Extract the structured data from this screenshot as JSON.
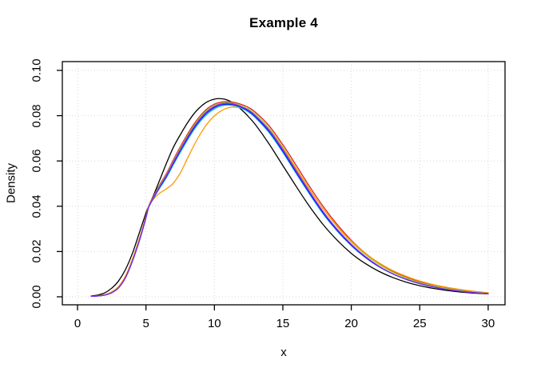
{
  "figure": {
    "background": "#FFFFFF"
  },
  "chart_data": {
    "type": "line",
    "title": "Example 4",
    "xlabel": "x",
    "ylabel": "Density",
    "xlim": [
      0,
      30
    ],
    "ylim": [
      0.0,
      0.1
    ],
    "grid": true,
    "grid_style": "dotted",
    "legend_position": "none",
    "colors": {
      "grid": "#D6D6D6",
      "axis": "#000000",
      "text": "#000000"
    },
    "xticks": {
      "values": [
        0,
        5,
        10,
        15,
        20,
        25,
        30
      ],
      "labels": [
        "0",
        "5",
        "10",
        "15",
        "20",
        "25",
        "30"
      ]
    },
    "yticks": {
      "values": [
        0.0,
        0.02,
        0.04,
        0.06,
        0.08,
        0.1
      ],
      "labels": [
        "0.00",
        "0.02",
        "0.04",
        "0.06",
        "0.08",
        "0.10"
      ]
    },
    "x": [
      1,
      1.5,
      2,
      2.5,
      3,
      3.5,
      4,
      4.5,
      5,
      5.2,
      5.6,
      6,
      6.5,
      7,
      7.5,
      8,
      8.5,
      9,
      9.5,
      10,
      10.5,
      11,
      11.5,
      12,
      12.5,
      13,
      14,
      15,
      16,
      17,
      18,
      19,
      20,
      21,
      22,
      23,
      24,
      25,
      26,
      27,
      28,
      29,
      30
    ],
    "series": [
      {
        "name": "black",
        "color": "#000000",
        "values": [
          0.0004,
          0.0008,
          0.0018,
          0.0038,
          0.007,
          0.012,
          0.019,
          0.028,
          0.037,
          0.04,
          0.0455,
          0.0515,
          0.059,
          0.066,
          0.0715,
          0.0765,
          0.0808,
          0.084,
          0.0862,
          0.0873,
          0.0875,
          0.0868,
          0.085,
          0.0825,
          0.0795,
          0.076,
          0.0675,
          0.058,
          0.0485,
          0.0395,
          0.0315,
          0.0248,
          0.0192,
          0.0148,
          0.0113,
          0.0086,
          0.0065,
          0.0049,
          0.0037,
          0.0028,
          0.0021,
          0.0016,
          0.0013
        ]
      },
      {
        "name": "red",
        "color": "#E82020",
        "values": [
          0.0002,
          0.0004,
          0.0008,
          0.0018,
          0.004,
          0.0085,
          0.016,
          0.025,
          0.0355,
          0.04,
          0.045,
          0.0495,
          0.0545,
          0.0605,
          0.0662,
          0.0715,
          0.0763,
          0.0802,
          0.0832,
          0.0851,
          0.086,
          0.0862,
          0.0858,
          0.0849,
          0.0836,
          0.0815,
          0.0755,
          0.0672,
          0.0578,
          0.0483,
          0.0395,
          0.0317,
          0.025,
          0.0194,
          0.015,
          0.0114,
          0.0087,
          0.0066,
          0.005,
          0.0038,
          0.0028,
          0.0021,
          0.0016
        ]
      },
      {
        "name": "green",
        "color": "#9ACD32",
        "values": [
          0.0002,
          0.0004,
          0.0008,
          0.0018,
          0.004,
          0.0085,
          0.0158,
          0.0248,
          0.0352,
          0.0398,
          0.0447,
          0.0491,
          0.054,
          0.0599,
          0.0655,
          0.0708,
          0.0756,
          0.0796,
          0.0826,
          0.0846,
          0.0856,
          0.0858,
          0.0853,
          0.0843,
          0.0829,
          0.0807,
          0.0745,
          0.0661,
          0.0566,
          0.0472,
          0.0384,
          0.0307,
          0.0242,
          0.0188,
          0.0144,
          0.011,
          0.0084,
          0.0063,
          0.0048,
          0.0036,
          0.0027,
          0.002,
          0.0015
        ]
      },
      {
        "name": "orange",
        "color": "#FF9900",
        "values": [
          0.0002,
          0.0005,
          0.001,
          0.0022,
          0.0046,
          0.0092,
          0.0165,
          0.0255,
          0.0355,
          0.04,
          0.0435,
          0.0458,
          0.0477,
          0.0502,
          0.0546,
          0.0607,
          0.0668,
          0.0722,
          0.0766,
          0.0799,
          0.0822,
          0.0835,
          0.0838,
          0.0832,
          0.0819,
          0.0798,
          0.0737,
          0.0655,
          0.0562,
          0.047,
          0.0385,
          0.031,
          0.0246,
          0.0193,
          0.0151,
          0.0117,
          0.0091,
          0.007,
          0.0054,
          0.0042,
          0.0032,
          0.0024,
          0.0018
        ]
      },
      {
        "name": "cyan",
        "color": "#00BFFF",
        "values": [
          0.0002,
          0.0004,
          0.0008,
          0.0018,
          0.004,
          0.0084,
          0.0155,
          0.0243,
          0.0347,
          0.0395,
          0.044,
          0.048,
          0.0527,
          0.0583,
          0.0637,
          0.0689,
          0.0737,
          0.0777,
          0.0808,
          0.083,
          0.0843,
          0.0847,
          0.0843,
          0.0832,
          0.0816,
          0.0791,
          0.0725,
          0.0638,
          0.0542,
          0.0449,
          0.0362,
          0.0288,
          0.0226,
          0.0175,
          0.0134,
          0.0102,
          0.0078,
          0.0059,
          0.0044,
          0.0033,
          0.0025,
          0.0019,
          0.0014
        ]
      },
      {
        "name": "blue",
        "color": "#1A1AEE",
        "values": [
          0.0002,
          0.0004,
          0.0008,
          0.0018,
          0.004,
          0.0084,
          0.0156,
          0.0245,
          0.0349,
          0.0396,
          0.0442,
          0.0484,
          0.0532,
          0.0589,
          0.0644,
          0.0696,
          0.0744,
          0.0784,
          0.0815,
          0.0836,
          0.0848,
          0.0851,
          0.0847,
          0.0836,
          0.082,
          0.0795,
          0.073,
          0.0643,
          0.0547,
          0.0454,
          0.0366,
          0.0291,
          0.0228,
          0.0176,
          0.0134,
          0.0102,
          0.0077,
          0.0058,
          0.0043,
          0.0032,
          0.0024,
          0.0018,
          0.0014
        ]
      },
      {
        "name": "purple",
        "color": "#8A2BE2",
        "values": [
          0.0002,
          0.0004,
          0.0008,
          0.0018,
          0.004,
          0.0085,
          0.0157,
          0.0246,
          0.035,
          0.0397,
          0.0444,
          0.0487,
          0.0536,
          0.0594,
          0.0649,
          0.0702,
          0.075,
          0.079,
          0.082,
          0.0841,
          0.0852,
          0.0855,
          0.085,
          0.0839,
          0.0824,
          0.08,
          0.0736,
          0.065,
          0.0554,
          0.046,
          0.0372,
          0.0296,
          0.0232,
          0.0179,
          0.0136,
          0.0103,
          0.0078,
          0.0058,
          0.0044,
          0.0032,
          0.0024,
          0.0018,
          0.0013
        ]
      }
    ]
  }
}
